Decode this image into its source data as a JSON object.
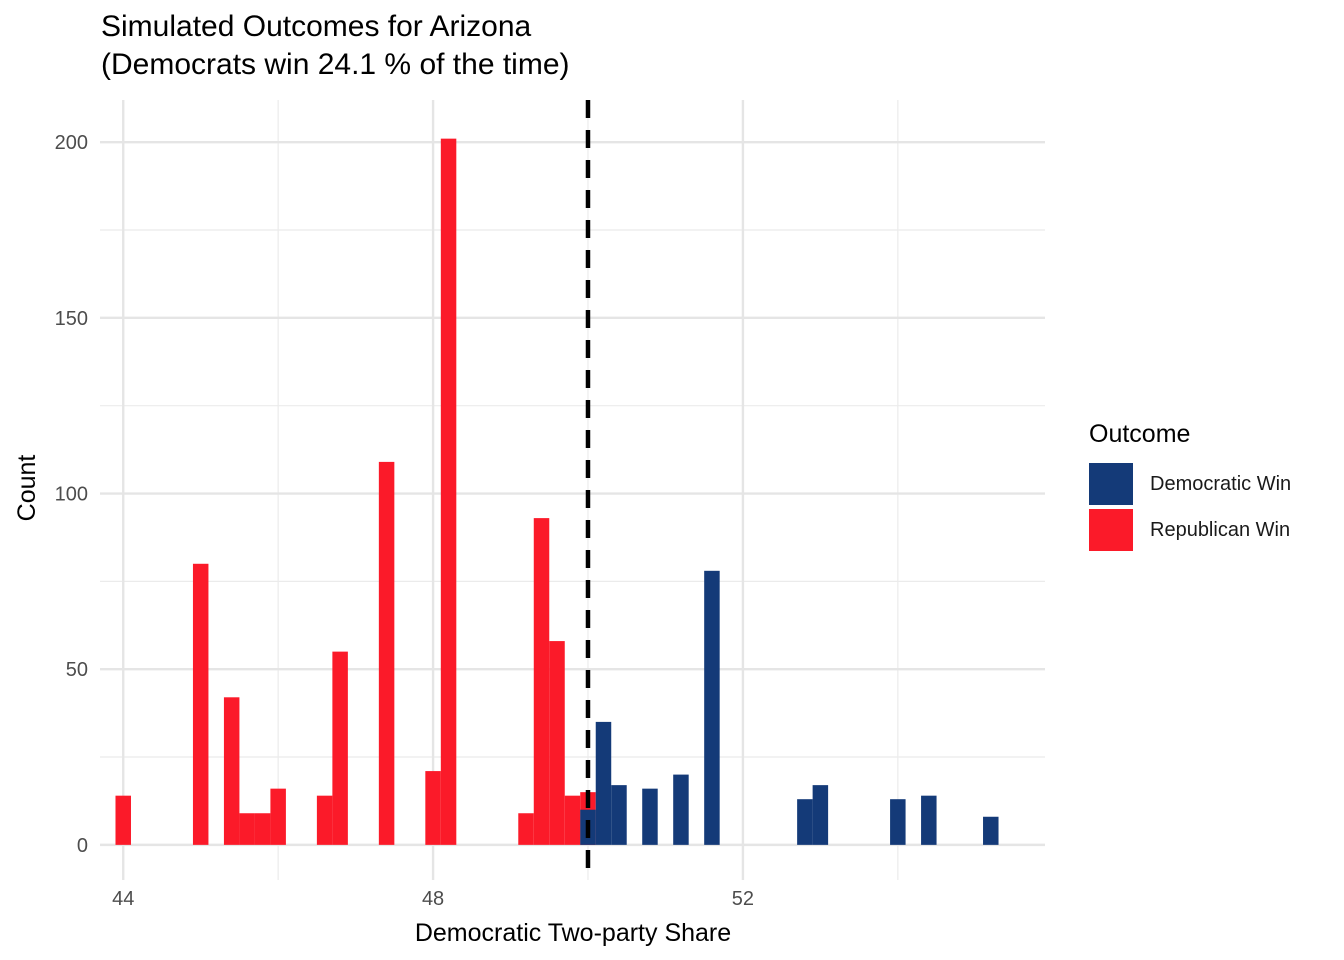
{
  "chart_data": {
    "type": "bar",
    "title": "Simulated Outcomes for Arizona",
    "subtitle": "(Democrats win 24.1 % of the time)",
    "xlabel": "Democratic Two-party Share",
    "ylabel": "Count",
    "xlim": [
      43.7,
      55.9
    ],
    "ylim": [
      -10,
      212
    ],
    "x_ticks": [
      44,
      48,
      52
    ],
    "y_ticks": [
      0,
      50,
      100,
      150,
      200
    ],
    "grid": true,
    "bin_width": 0.2,
    "reference_line": {
      "x": 50,
      "style": "dashed",
      "color": "#000000"
    },
    "legend": {
      "title": "Outcome",
      "position": "right",
      "entries": [
        {
          "label": "Democratic Win",
          "color": "#143a78"
        },
        {
          "label": "Republican Win",
          "color": "#fb1a29"
        }
      ]
    },
    "series": [
      {
        "name": "Republican Win",
        "color": "#fb1a29",
        "bins": [
          {
            "x": 44.0,
            "count": 14
          },
          {
            "x": 45.0,
            "count": 80
          },
          {
            "x": 45.4,
            "count": 42
          },
          {
            "x": 45.6,
            "count": 9
          },
          {
            "x": 45.8,
            "count": 9
          },
          {
            "x": 46.0,
            "count": 16
          },
          {
            "x": 46.6,
            "count": 14
          },
          {
            "x": 46.8,
            "count": 55
          },
          {
            "x": 47.4,
            "count": 109
          },
          {
            "x": 48.0,
            "count": 21
          },
          {
            "x": 48.2,
            "count": 201
          },
          {
            "x": 49.2,
            "count": 9
          },
          {
            "x": 49.4,
            "count": 93
          },
          {
            "x": 49.6,
            "count": 58
          },
          {
            "x": 49.8,
            "count": 14
          },
          {
            "x": 50.0,
            "count": 15
          }
        ]
      },
      {
        "name": "Democratic Win",
        "color": "#143a78",
        "bins": [
          {
            "x": 50.0,
            "count": 10
          },
          {
            "x": 50.2,
            "count": 35
          },
          {
            "x": 50.4,
            "count": 17
          },
          {
            "x": 50.8,
            "count": 16
          },
          {
            "x": 51.2,
            "count": 20
          },
          {
            "x": 51.6,
            "count": 78
          },
          {
            "x": 52.8,
            "count": 13
          },
          {
            "x": 53.0,
            "count": 17
          },
          {
            "x": 54.0,
            "count": 13
          },
          {
            "x": 54.4,
            "count": 14
          },
          {
            "x": 55.2,
            "count": 8
          }
        ]
      }
    ]
  }
}
